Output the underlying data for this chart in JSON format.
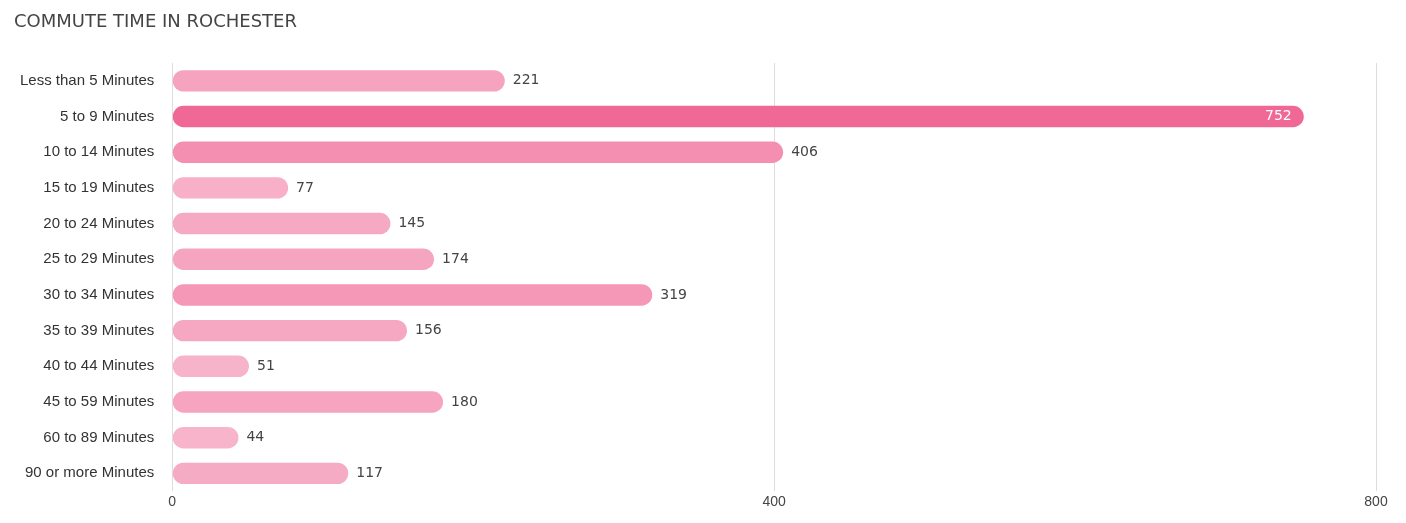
{
  "chart_data": {
    "type": "bar",
    "orientation": "horizontal",
    "title": "COMMUTE TIME IN ROCHESTER",
    "categories": [
      "Less than 5 Minutes",
      "5 to 9 Minutes",
      "10 to 14 Minutes",
      "15 to 19 Minutes",
      "20 to 24 Minutes",
      "25 to 29 Minutes",
      "30 to 34 Minutes",
      "35 to 39 Minutes",
      "40 to 44 Minutes",
      "45 to 59 Minutes",
      "60 to 89 Minutes",
      "90 or more Minutes"
    ],
    "values": [
      221,
      752,
      406,
      77,
      145,
      174,
      319,
      156,
      51,
      180,
      44,
      117
    ],
    "colors": [
      "#f5a3bf",
      "#f06896",
      "#f48fb1",
      "#f7b0c8",
      "#f6a9c3",
      "#f6a5c0",
      "#f597b7",
      "#f6a7c2",
      "#f7b3ca",
      "#f6a4c0",
      "#f7b4cb",
      "#f6abc5"
    ],
    "xlim": [
      0,
      800
    ],
    "xticks": [
      0,
      400,
      800
    ],
    "grid": "x",
    "data_labels": true,
    "legend": false
  }
}
